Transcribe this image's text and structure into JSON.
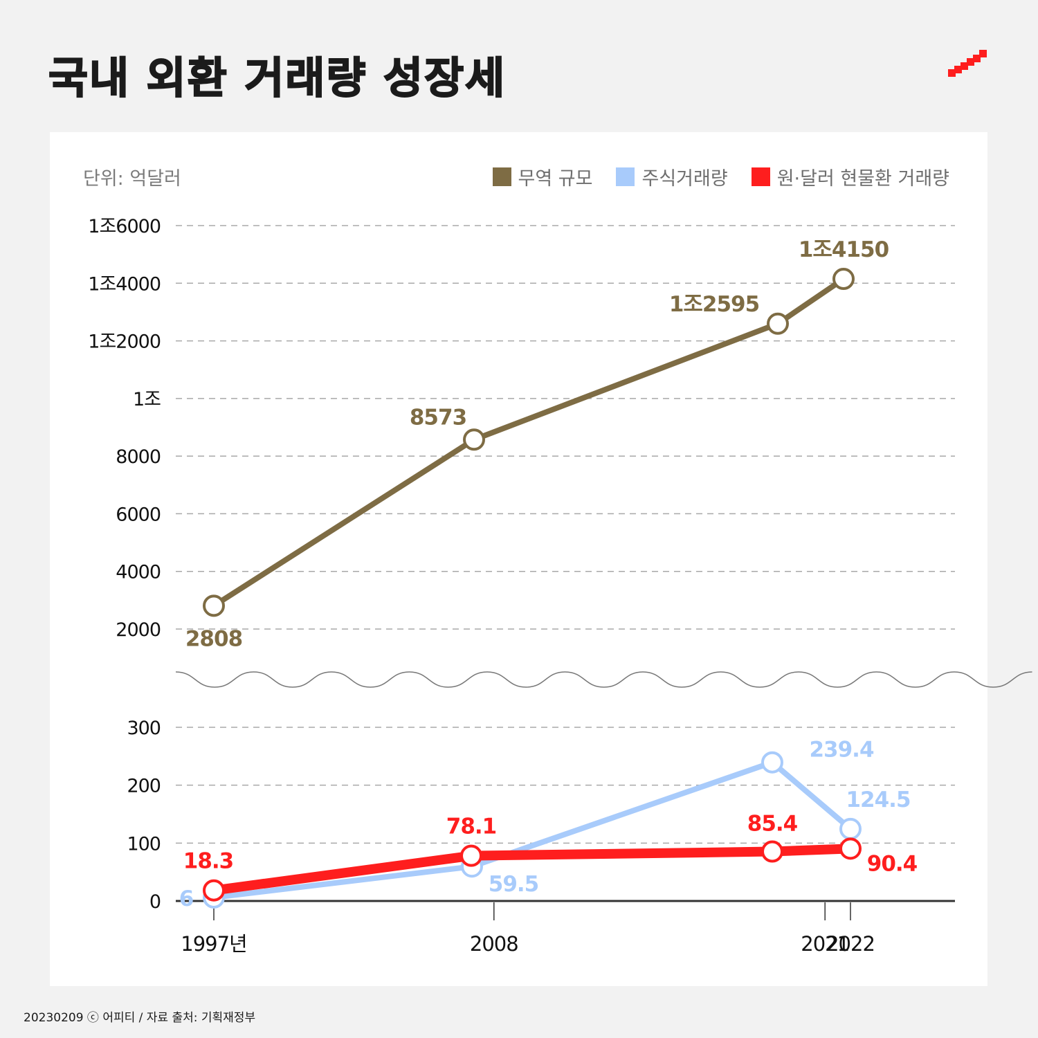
{
  "title": "국내 외환 거래량 성장세",
  "unit_label": "단위: 억달러",
  "legend": [
    {
      "label": "무역 규모",
      "color": "#7e6c44"
    },
    {
      "label": "주식거래량",
      "color": "#a8cbfb"
    },
    {
      "label": "원·달러 현물환 거래량",
      "color": "#fe1e1e"
    }
  ],
  "footer": "20230209 ⓒ 어피티 / 자료 출처: 기획재정부",
  "chart_data": {
    "type": "line",
    "title": "국내 외환 거래량 성장세",
    "unit": "억달러",
    "x": [
      "1997년",
      "2008",
      "2021",
      "2022"
    ],
    "x_years": [
      1997,
      2008,
      2021,
      2022
    ],
    "broken_axis": true,
    "upper_axis": {
      "ylim": [
        2000,
        16000
      ],
      "ticks": [
        2000,
        4000,
        6000,
        8000,
        10000,
        12000,
        14000,
        16000
      ],
      "tick_labels": [
        "2000",
        "4000",
        "6000",
        "8000",
        "1조",
        "1조2000",
        "1조4000",
        "1조6000"
      ]
    },
    "lower_axis": {
      "ylim": [
        0,
        300
      ],
      "ticks": [
        0,
        100,
        200,
        300
      ],
      "tick_labels": [
        "0",
        "100",
        "200",
        "300"
      ]
    },
    "grid": true,
    "legend_position": "top-right",
    "series": [
      {
        "name": "무역 규모",
        "axis": "upper",
        "color": "#7e6c44",
        "values": [
          2808,
          8573,
          12595,
          14150
        ],
        "labels": [
          "2808",
          "8573",
          "1조2595",
          "1조4150"
        ]
      },
      {
        "name": "주식거래량",
        "axis": "lower",
        "color": "#a8cbfb",
        "values": [
          6,
          59.5,
          239.4,
          124.5
        ],
        "labels": [
          "6",
          "59.5",
          "239.4",
          "124.5"
        ]
      },
      {
        "name": "원·달러 현물환 거래량",
        "axis": "lower",
        "color": "#fe1e1e",
        "values": [
          18.3,
          78.1,
          85.4,
          90.4
        ],
        "labels": [
          "18.3",
          "78.1",
          "85.4",
          "90.4"
        ]
      }
    ]
  }
}
